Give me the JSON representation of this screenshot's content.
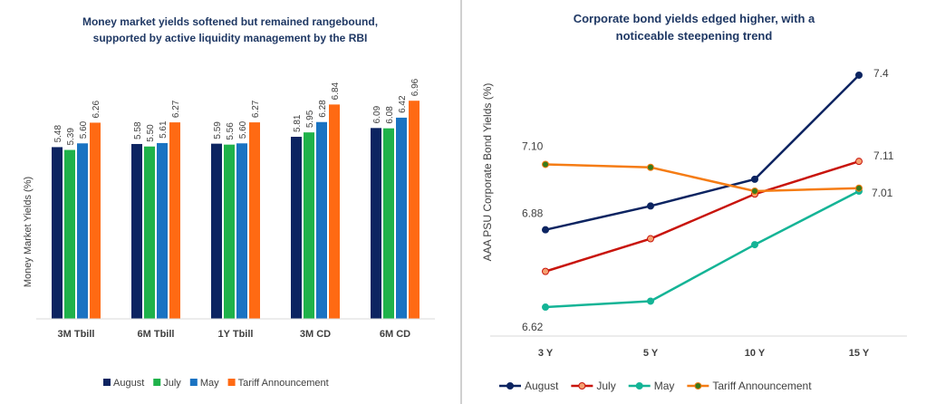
{
  "chart_data": [
    {
      "type": "bar",
      "title": "Money market yields softened but remained rangebound, supported by active liquidity management by the RBI",
      "ylabel": "Money Market Yields (%)",
      "xlabel": "",
      "categories": [
        "3M Tbill",
        "6M Tbill",
        "1Y Tbill",
        "3M CD",
        "6M CD"
      ],
      "ylim": [
        0,
        7.4
      ],
      "grid": false,
      "legend_position": "bottom",
      "series": [
        {
          "name": "August",
          "color": "#0c2461",
          "values": [
            5.48,
            5.58,
            5.59,
            5.81,
            6.09
          ],
          "labels": [
            "5.48",
            "5.58",
            "5.59",
            "5.81",
            "6.09"
          ]
        },
        {
          "name": "July",
          "color": "#1fb24a",
          "values": [
            5.39,
            5.5,
            5.56,
            5.95,
            6.08
          ],
          "labels": [
            "5.39",
            "5.50",
            "5.56",
            "5.95",
            "6.08"
          ]
        },
        {
          "name": "May",
          "color": "#1a73c2",
          "values": [
            5.6,
            5.61,
            5.6,
            6.28,
            6.42
          ],
          "labels": [
            "5.60",
            "5.61",
            "5.60",
            "6.28",
            "6.42"
          ]
        },
        {
          "name": "Tariff Announcement",
          "color": "#ff6a13",
          "values": [
            6.26,
            6.27,
            6.27,
            6.84,
            6.96
          ],
          "labels": [
            "6.26",
            "6.27",
            "6.27",
            "6.84",
            "6.96"
          ]
        }
      ]
    },
    {
      "type": "line",
      "title": "Corporate bond yields edged higher, with a noticeable steepening trend",
      "ylabel": "AAA PSU Corporate Bond Yields (%)",
      "xlabel": "",
      "categories": [
        "3 Y",
        "5 Y",
        "10 Y",
        "15 Y"
      ],
      "ylim": [
        6.55,
        7.47
      ],
      "grid": false,
      "legend_position": "bottom",
      "series": [
        {
          "name": "August",
          "color": "#0c2461",
          "values": [
            6.88,
            6.96,
            7.05,
            7.4
          ]
        },
        {
          "name": "July",
          "color": "#c8140c",
          "values": [
            6.74,
            6.85,
            7.0,
            7.11
          ]
        },
        {
          "name": "May",
          "color": "#14b496",
          "values": [
            6.62,
            6.64,
            6.83,
            7.01
          ]
        },
        {
          "name": "Tariff Announcement",
          "color": "#f57c14",
          "values": [
            7.1,
            7.09,
            7.01,
            7.02
          ]
        }
      ],
      "annotations": [
        {
          "series": 0,
          "index": 0,
          "text": "6.88"
        },
        {
          "series": 0,
          "index": 3,
          "text": "7.4"
        },
        {
          "series": 1,
          "index": 3,
          "text": "7.11"
        },
        {
          "series": 2,
          "index": 0,
          "text": "6.62"
        },
        {
          "series": 2,
          "index": 3,
          "text": "7.01"
        },
        {
          "series": 3,
          "index": 0,
          "text": "7.10"
        }
      ]
    }
  ]
}
